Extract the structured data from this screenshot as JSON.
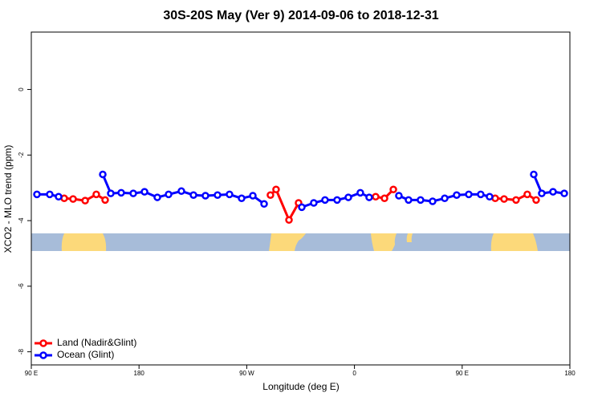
{
  "chart_data": {
    "type": "line",
    "title": "30S-20S May (Ver 9)   2014-09-06 to 2018-12-31",
    "x_label": "Longitude (deg E)",
    "y_label": "XCO2 - MLO trend (ppm)",
    "xlim": [
      90,
      540
    ],
    "xticks": [
      {
        "value": 90,
        "label": "90 E"
      },
      180,
      {
        "value": 270,
        "label": "90 W"
      },
      {
        "value": 360,
        "label": "0"
      },
      {
        "value": 450,
        "label": "90 E"
      },
      {
        "value": 540,
        "label": "180"
      }
    ],
    "ylim": [
      -8.4,
      1.75
    ],
    "yticks": [
      0,
      -2,
      -4,
      -6,
      -8
    ],
    "legend": "bottom-left",
    "series": [
      {
        "name": "Land (Nadir&Glint)",
        "color": "#ff0000",
        "x": [
          117.5,
          124.9,
          135.0,
          144.3,
          151.7,
          null,
          289.8,
          294.5,
          305.3,
          313.3,
          null,
          377.7,
          385.1,
          392.5,
          null,
          477.6,
          485.0,
          495.0,
          504.4,
          511.8
        ],
        "values": [
          -3.32,
          -3.34,
          -3.39,
          -3.2,
          -3.37,
          null,
          -3.22,
          -3.05,
          -3.98,
          -3.46,
          null,
          -3.27,
          -3.32,
          -3.05,
          null,
          -3.32,
          -3.34,
          -3.37,
          -3.2,
          -3.37
        ]
      },
      {
        "name": "Ocean (Glint)",
        "color": "#0000ff",
        "x": [
          94.7,
          105.4,
          112.8,
          null,
          149.7,
          156.4,
          165.1,
          175.2,
          184.6,
          195.3,
          204.7,
          215.4,
          225.5,
          235.5,
          245.6,
          255.6,
          265.7,
          275.1,
          284.5,
          null,
          316.0,
          326.0,
          335.4,
          345.5,
          354.9,
          364.9,
          372.3,
          null,
          397.1,
          405.2,
          415.2,
          425.3,
          435.4,
          445.4,
          455.5,
          465.5,
          472.9,
          null,
          509.8,
          516.5,
          525.9,
          535.3
        ],
        "values": [
          -3.2,
          -3.2,
          -3.27,
          null,
          -2.59,
          -3.17,
          -3.15,
          -3.17,
          -3.12,
          -3.29,
          -3.2,
          -3.1,
          -3.22,
          -3.24,
          -3.22,
          -3.2,
          -3.32,
          -3.24,
          -3.49,
          null,
          -3.59,
          -3.46,
          -3.37,
          -3.37,
          -3.29,
          -3.15,
          -3.29,
          null,
          -3.24,
          -3.37,
          -3.37,
          -3.41,
          -3.32,
          -3.22,
          -3.2,
          -3.2,
          -3.27,
          null,
          -2.59,
          -3.17,
          -3.12,
          -3.17
        ]
      }
    ]
  }
}
